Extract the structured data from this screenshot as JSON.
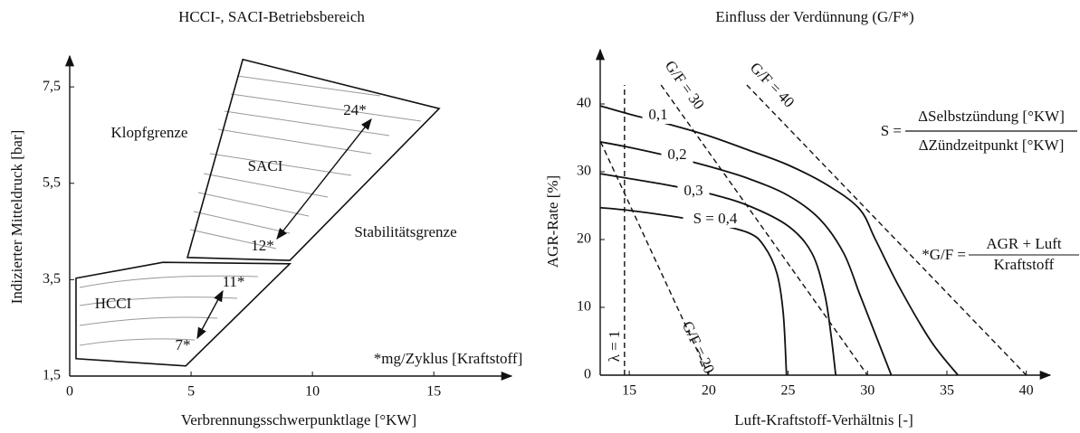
{
  "chart_data": [
    {
      "type": "region",
      "title": "HCCI-, SACI-Betriebsbereich",
      "xlabel": "Verbrennungsschwerpunktlage [°KW]",
      "ylabel": "Indizierter Mitteldruck [bar]",
      "xlim": [
        0,
        18.2
      ],
      "ylim": [
        1.5,
        8.14
      ],
      "xticks": [
        0,
        5,
        10,
        15
      ],
      "yticks": [
        {
          "value": 1.5,
          "label": "1,5"
        },
        {
          "value": 3.5,
          "label": "3,5"
        },
        {
          "value": 5.5,
          "label": "5,5"
        },
        {
          "value": 7.5,
          "label": "7,5"
        }
      ],
      "regions": [
        {
          "name": "HCCI",
          "x": [
            0.26,
            3.84,
            9.07,
            4.78,
            0.26
          ],
          "y": [
            3.53,
            3.86,
            3.83,
            1.71,
            1.86
          ]
        },
        {
          "name": "SACI",
          "x": [
            7.13,
            15.22,
            9.07,
            4.85
          ],
          "y": [
            8.07,
            7.05,
            3.9,
            3.96
          ]
        }
      ],
      "annotations": [
        "Klopfgrenze",
        "Stabilitätsgrenze",
        "24*",
        "12*",
        "11*",
        "7*",
        "*mg/Zyklus [Kraftstoff]"
      ],
      "color": "#111111"
    },
    {
      "type": "line",
      "title": "Einfluss der Verdünnung (G/F*)",
      "xlabel": "Luft-Kraftstoff-Verhältnis [-]",
      "ylabel": "AGR-Rate [%]",
      "xlim": [
        13.17,
        41.5
      ],
      "ylim": [
        0,
        48
      ],
      "xticks": [
        15,
        20,
        25,
        30,
        35,
        40
      ],
      "yticks": [
        0,
        10,
        20,
        30,
        40
      ],
      "series": [
        {
          "name": "0,1",
          "color": "#111111",
          "style": "solid",
          "x": [
            13.2,
            15,
            17.5,
            20,
            22.5,
            25,
            27.5,
            29.5,
            30.5,
            32,
            34,
            35.7
          ],
          "y": [
            39.7,
            38.5,
            37,
            35.3,
            33.2,
            31,
            28,
            24.5,
            20,
            13,
            5,
            0
          ]
        },
        {
          "name": "0,2",
          "color": "#111111",
          "style": "solid",
          "x": [
            13.2,
            15,
            17.5,
            20,
            22.5,
            25,
            27,
            28.5,
            29.5,
            30.5,
            31,
            31.5
          ],
          "y": [
            34.4,
            33.6,
            32.3,
            30.8,
            29,
            26.5,
            23,
            18,
            12,
            6,
            3,
            0
          ]
        },
        {
          "name": "0,3",
          "color": "#111111",
          "style": "solid",
          "x": [
            13.2,
            15,
            17.5,
            20,
            22.5,
            25,
            26.5,
            27.3,
            27.7,
            28
          ],
          "y": [
            29.7,
            29,
            28,
            26.8,
            25,
            22,
            18,
            12,
            6,
            0
          ]
        },
        {
          "name": "S = 0,4",
          "color": "#111111",
          "style": "solid",
          "x": [
            13.2,
            15,
            17.5,
            20,
            22.5,
            23.5,
            24.3,
            24.7,
            24.9
          ],
          "y": [
            24.7,
            24.3,
            23.5,
            22.5,
            21,
            19,
            15,
            9,
            0
          ]
        },
        {
          "name": "G/F = 20",
          "color": "#111111",
          "style": "dashed",
          "x": [
            13.2,
            20
          ],
          "y": [
            34.4,
            0
          ]
        },
        {
          "name": "G/F = 30",
          "color": "#111111",
          "style": "dashed",
          "x": [
            17,
            30
          ],
          "y": [
            42.8,
            0
          ]
        },
        {
          "name": "G/F = 40",
          "color": "#111111",
          "style": "dashed",
          "x": [
            22.4,
            40
          ],
          "y": [
            42.8,
            0
          ]
        },
        {
          "name": "λ = 1",
          "color": "#111111",
          "style": "dashed",
          "x": [
            14.7,
            14.7
          ],
          "y": [
            0,
            42.8
          ]
        }
      ],
      "formula": {
        "lhs": "S =",
        "numerator": "ΔSelbstzündung [°KW]",
        "denominator": "ΔZündzeitpunkt [°KW]"
      },
      "footnote": {
        "lhs": "*G/F =",
        "numerator": "AGR + Luft",
        "denominator": "Kraftstoff"
      }
    }
  ]
}
